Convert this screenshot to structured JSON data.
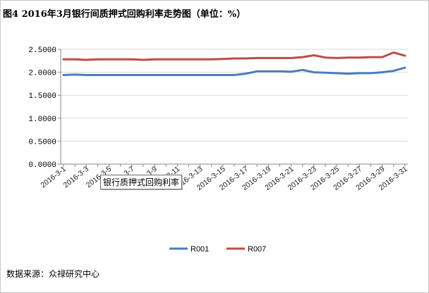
{
  "title": "图4 2016年3月银行间质押式回购利率走势图（单位：%）",
  "source": "数据来源：众禄研究中心",
  "tooltip": "银行质押式回购利率",
  "chart_data": {
    "type": "line",
    "title": "图4 2016年3月银行间质押式回购利率走势图（单位：%）",
    "xlabel": "",
    "ylabel": "",
    "ylim": [
      0,
      2.5
    ],
    "yticks": [
      "0.0000",
      "0.5000",
      "1.0000",
      "1.5000",
      "2.0000",
      "2.5000"
    ],
    "grid": "horizontal",
    "legend": "bottom",
    "x": [
      "2016-3-1",
      "2016-3-2",
      "2016-3-3",
      "2016-3-4",
      "2016-3-5",
      "2016-3-6",
      "2016-3-7",
      "2016-3-8",
      "2016-3-9",
      "2016-3-10",
      "2016-3-11",
      "2016-3-12",
      "2016-3-13",
      "2016-3-14",
      "2016-3-15",
      "2016-3-16",
      "2016-3-17",
      "2016-3-18",
      "2016-3-19",
      "2016-3-20",
      "2016-3-21",
      "2016-3-22",
      "2016-3-23",
      "2016-3-24",
      "2016-3-25",
      "2016-3-26",
      "2016-3-27",
      "2016-3-28",
      "2016-3-29",
      "2016-3-30",
      "2016-3-31"
    ],
    "xtick_labels": [
      "2016-3-1",
      "2016-3-3",
      "2016-3-5",
      "2016-3-7",
      "2016-3-9",
      "2016-3-11",
      "2016-3-13",
      "2016-3-15",
      "2016-3-17",
      "2016-3-19",
      "2016-3-21",
      "2016-3-23",
      "2016-3-25",
      "2016-3-27",
      "2016-3-29",
      "2016-3-31"
    ],
    "series": [
      {
        "name": "R001",
        "color": "#4a7ebb",
        "values": [
          1.94,
          1.95,
          1.94,
          1.94,
          1.94,
          1.94,
          1.94,
          1.94,
          1.94,
          1.94,
          1.94,
          1.94,
          1.94,
          1.94,
          1.94,
          1.94,
          1.97,
          2.02,
          2.02,
          2.02,
          2.01,
          2.05,
          2.0,
          1.99,
          1.98,
          1.97,
          1.98,
          1.98,
          2.0,
          2.03,
          2.1
        ]
      },
      {
        "name": "R007",
        "color": "#be4b48",
        "values": [
          2.28,
          2.28,
          2.27,
          2.28,
          2.28,
          2.28,
          2.28,
          2.27,
          2.28,
          2.28,
          2.28,
          2.28,
          2.28,
          2.28,
          2.29,
          2.3,
          2.3,
          2.31,
          2.31,
          2.31,
          2.31,
          2.33,
          2.37,
          2.32,
          2.31,
          2.32,
          2.32,
          2.33,
          2.33,
          2.43,
          2.36
        ]
      }
    ]
  }
}
